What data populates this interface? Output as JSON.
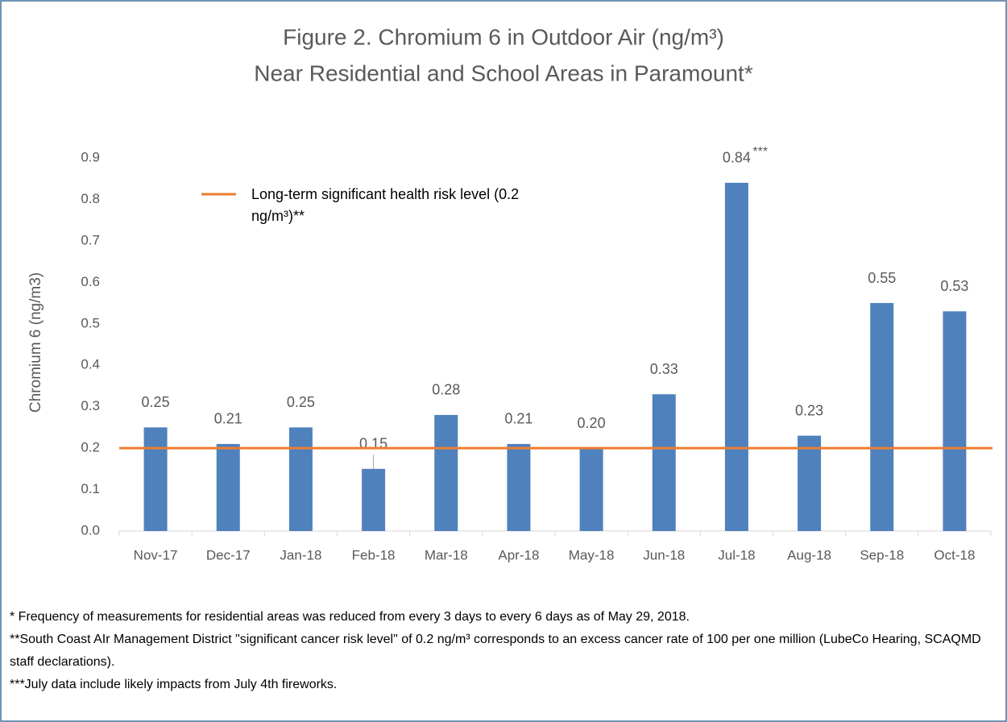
{
  "chart_data": {
    "type": "bar",
    "title": [
      "Figure 2. Chromium 6 in Outdoor Air (ng/m³)",
      "Near Residential and School Areas in Paramount*"
    ],
    "y_label": "Chromium 6 (ng/m3)",
    "categories": [
      "Nov-17",
      "Dec-17",
      "Jan-18",
      "Feb-18",
      "Mar-18",
      "Apr-18",
      "May-18",
      "Jun-18",
      "Jul-18",
      "Aug-18",
      "Sep-18",
      "Oct-18"
    ],
    "values": [
      0.25,
      0.21,
      0.25,
      0.15,
      0.28,
      0.21,
      0.2,
      0.33,
      0.84,
      0.23,
      0.55,
      0.53
    ],
    "value_labels": [
      "0.25",
      "0.21",
      "0.25",
      "0.15",
      "0.28",
      "0.21",
      "0.20",
      "0.33",
      "0.84",
      "0.23",
      "0.55",
      "0.53"
    ],
    "color": "#4f81bd",
    "ylim": [
      0,
      0.9
    ],
    "yticks": [
      {
        "value": 0,
        "label": "0.0"
      },
      0.1,
      0.2,
      0.3,
      0.4,
      0.5,
      0.6,
      0.7,
      0.8,
      0.9
    ],
    "reference_line": {
      "value": 0.2,
      "label": "Long-term significant health risk level (0.2 ng/m³)**",
      "color": "#ed7d31"
    },
    "annotations": [
      {
        "category": "Jul-18",
        "text": "***"
      }
    ],
    "notes": [
      "* Frequency of measurements for residential areas was reduced from every 3 days to every 6 days as of May 29, 2018.",
      "**South Coast AIr Management District \"significant cancer risk level\" of 0.2 ng/m³ corresponds to an excess cancer rate of 100 per one million (LubeCo Hearing, SCAQMD staff declarations).",
      "***July data include likely impacts from July 4th fireworks."
    ]
  }
}
